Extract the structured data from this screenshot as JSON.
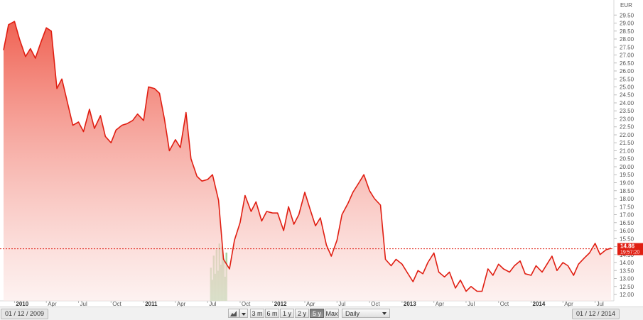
{
  "chart_data": {
    "type": "area",
    "currency": "EUR",
    "series": [
      {
        "values": [
          [
            "2009-12-01",
            27.3
          ],
          [
            "2009-12-15",
            28.9
          ],
          [
            "2010-01-01",
            29.1
          ],
          [
            "2010-01-15",
            28.0
          ],
          [
            "2010-02-01",
            26.9
          ],
          [
            "2010-02-15",
            27.4
          ],
          [
            "2010-03-01",
            26.8
          ],
          [
            "2010-03-15",
            27.7
          ],
          [
            "2010-04-01",
            28.7
          ],
          [
            "2010-04-15",
            28.5
          ],
          [
            "2010-05-01",
            24.9
          ],
          [
            "2010-05-15",
            25.5
          ],
          [
            "2010-06-01",
            23.9
          ],
          [
            "2010-06-15",
            22.6
          ],
          [
            "2010-07-01",
            22.8
          ],
          [
            "2010-07-15",
            22.2
          ],
          [
            "2010-08-01",
            23.6
          ],
          [
            "2010-08-15",
            22.4
          ],
          [
            "2010-09-01",
            23.2
          ],
          [
            "2010-09-15",
            21.9
          ],
          [
            "2010-10-01",
            21.5
          ],
          [
            "2010-10-15",
            22.3
          ],
          [
            "2010-11-01",
            22.6
          ],
          [
            "2010-11-15",
            22.7
          ],
          [
            "2010-12-01",
            22.9
          ],
          [
            "2010-12-15",
            23.3
          ],
          [
            "2011-01-01",
            22.9
          ],
          [
            "2011-01-15",
            25.0
          ],
          [
            "2011-02-01",
            24.9
          ],
          [
            "2011-02-15",
            24.6
          ],
          [
            "2011-03-01",
            23.0
          ],
          [
            "2011-03-15",
            21.0
          ],
          [
            "2011-04-01",
            21.7
          ],
          [
            "2011-04-15",
            21.2
          ],
          [
            "2011-05-01",
            23.4
          ],
          [
            "2011-05-15",
            20.5
          ],
          [
            "2011-06-01",
            19.4
          ],
          [
            "2011-06-15",
            19.1
          ],
          [
            "2011-07-01",
            19.2
          ],
          [
            "2011-07-15",
            19.5
          ],
          [
            "2011-08-01",
            17.9
          ],
          [
            "2011-08-15",
            14.2
          ],
          [
            "2011-09-01",
            13.6
          ],
          [
            "2011-09-15",
            15.4
          ],
          [
            "2011-10-01",
            16.5
          ],
          [
            "2011-10-15",
            18.2
          ],
          [
            "2011-11-01",
            17.2
          ],
          [
            "2011-11-15",
            17.8
          ],
          [
            "2011-12-01",
            16.6
          ],
          [
            "2011-12-15",
            17.2
          ],
          [
            "2012-01-01",
            17.1
          ],
          [
            "2012-01-15",
            17.1
          ],
          [
            "2012-02-01",
            16.0
          ],
          [
            "2012-02-15",
            17.5
          ],
          [
            "2012-03-01",
            16.4
          ],
          [
            "2012-03-15",
            17.0
          ],
          [
            "2012-04-01",
            18.4
          ],
          [
            "2012-04-15",
            17.4
          ],
          [
            "2012-05-01",
            16.3
          ],
          [
            "2012-05-15",
            16.8
          ],
          [
            "2012-06-01",
            15.1
          ],
          [
            "2012-06-15",
            14.4
          ],
          [
            "2012-07-01",
            15.4
          ],
          [
            "2012-07-15",
            17.0
          ],
          [
            "2012-08-01",
            17.7
          ],
          [
            "2012-08-15",
            18.4
          ],
          [
            "2012-09-01",
            19.0
          ],
          [
            "2012-09-15",
            19.5
          ],
          [
            "2012-10-01",
            18.5
          ],
          [
            "2012-10-15",
            18.0
          ],
          [
            "2012-11-01",
            17.6
          ],
          [
            "2012-11-15",
            14.2
          ],
          [
            "2012-12-01",
            13.8
          ],
          [
            "2012-12-15",
            14.2
          ],
          [
            "2013-01-01",
            13.9
          ],
          [
            "2013-01-15",
            13.4
          ],
          [
            "2013-02-01",
            12.8
          ],
          [
            "2013-02-15",
            13.5
          ],
          [
            "2013-03-01",
            13.3
          ],
          [
            "2013-03-15",
            14.0
          ],
          [
            "2013-04-01",
            14.6
          ],
          [
            "2013-04-15",
            13.4
          ],
          [
            "2013-05-01",
            13.1
          ],
          [
            "2013-05-15",
            13.4
          ],
          [
            "2013-06-01",
            12.4
          ],
          [
            "2013-06-15",
            12.9
          ],
          [
            "2013-07-01",
            12.2
          ],
          [
            "2013-07-15",
            12.5
          ],
          [
            "2013-08-01",
            12.2
          ],
          [
            "2013-08-15",
            12.2
          ],
          [
            "2013-09-01",
            13.6
          ],
          [
            "2013-09-15",
            13.2
          ],
          [
            "2013-10-01",
            13.9
          ],
          [
            "2013-10-15",
            13.6
          ],
          [
            "2013-11-01",
            13.4
          ],
          [
            "2013-11-15",
            13.8
          ],
          [
            "2013-12-01",
            14.1
          ],
          [
            "2013-12-15",
            13.3
          ],
          [
            "2014-01-01",
            13.2
          ],
          [
            "2014-01-15",
            13.8
          ],
          [
            "2014-02-01",
            13.4
          ],
          [
            "2014-02-15",
            13.9
          ],
          [
            "2014-03-01",
            14.4
          ],
          [
            "2014-03-15",
            13.5
          ],
          [
            "2014-04-01",
            14.0
          ],
          [
            "2014-04-15",
            13.8
          ],
          [
            "2014-05-01",
            13.2
          ],
          [
            "2014-05-15",
            13.9
          ],
          [
            "2014-06-01",
            14.3
          ],
          [
            "2014-06-15",
            14.6
          ],
          [
            "2014-07-01",
            15.2
          ],
          [
            "2014-07-15",
            14.5
          ],
          [
            "2014-08-01",
            14.8
          ],
          [
            "2014-08-15",
            14.9
          ]
        ]
      }
    ],
    "ylim": [
      11.6,
      30.0
    ],
    "y_ticks": [
      "12.00",
      "12.50",
      "13.00",
      "13.50",
      "14.00",
      "14.50",
      "15.00",
      "15.50",
      "16.00",
      "16.50",
      "17.00",
      "17.50",
      "18.00",
      "18.50",
      "19.00",
      "19.50",
      "20.00",
      "20.50",
      "21.00",
      "21.50",
      "22.00",
      "22.50",
      "23.00",
      "23.50",
      "24.00",
      "24.50",
      "25.00",
      "25.50",
      "26.00",
      "26.50",
      "27.00",
      "27.50",
      "28.00",
      "28.50",
      "29.00",
      "29.50"
    ],
    "x_range": [
      "2009-12-01",
      "2014-08-19"
    ],
    "x_ticks": [
      {
        "date": "2010-01-01",
        "label": "2010",
        "year": true
      },
      {
        "date": "2010-04-01",
        "label": "Apr",
        "year": false
      },
      {
        "date": "2010-07-01",
        "label": "Jul",
        "year": false
      },
      {
        "date": "2010-10-01",
        "label": "Oct",
        "year": false
      },
      {
        "date": "2011-01-01",
        "label": "2011",
        "year": true
      },
      {
        "date": "2011-04-01",
        "label": "Apr",
        "year": false
      },
      {
        "date": "2011-07-01",
        "label": "Jul",
        "year": false
      },
      {
        "date": "2011-10-01",
        "label": "Oct",
        "year": false
      },
      {
        "date": "2012-01-01",
        "label": "2012",
        "year": true
      },
      {
        "date": "2012-04-01",
        "label": "Apr",
        "year": false
      },
      {
        "date": "2012-07-01",
        "label": "Jul",
        "year": false
      },
      {
        "date": "2012-10-01",
        "label": "Oct",
        "year": false
      },
      {
        "date": "2013-01-01",
        "label": "2013",
        "year": true
      },
      {
        "date": "2013-04-01",
        "label": "Apr",
        "year": false
      },
      {
        "date": "2013-07-01",
        "label": "Jul",
        "year": false
      },
      {
        "date": "2013-10-01",
        "label": "Oct",
        "year": false
      },
      {
        "date": "2014-01-01",
        "label": "2014",
        "year": true
      },
      {
        "date": "2014-04-01",
        "label": "Apr",
        "year": false
      },
      {
        "date": "2014-07-01",
        "label": "Jul",
        "year": false
      }
    ],
    "volume": [
      {
        "date": "2011-07-10",
        "value": 0.55
      },
      {
        "date": "2011-07-14",
        "value": 0.35
      },
      {
        "date": "2011-07-18",
        "value": 0.75
      },
      {
        "date": "2011-07-22",
        "value": 0.45
      },
      {
        "date": "2011-07-26",
        "value": 0.85
      },
      {
        "date": "2011-07-30",
        "value": 0.5
      },
      {
        "date": "2011-08-03",
        "value": 0.95
      },
      {
        "date": "2011-08-07",
        "value": 0.6
      },
      {
        "date": "2011-08-11",
        "value": 0.9
      },
      {
        "date": "2011-08-15",
        "value": 0.7
      },
      {
        "date": "2011-08-19",
        "value": 0.4
      },
      {
        "date": "2011-08-23",
        "value": 0.8
      }
    ],
    "last_price": {
      "value": "14.86",
      "time": "19:57:20",
      "level": 14.86
    },
    "line_color": "#e01e12",
    "fill_color_top": "#ef5a4a",
    "fill_color_bottom": "#fce9e7",
    "grid": false
  },
  "toolbar": {
    "date_start": "01 / 12 / 2009",
    "date_end": "01 / 12 / 2014",
    "chart_type_icon": "area-chart-icon",
    "ranges": [
      "3 m",
      "6 m",
      "1 y",
      "2 y",
      "5 y",
      "Max"
    ],
    "active_range": "5 y",
    "interval": "Daily"
  }
}
